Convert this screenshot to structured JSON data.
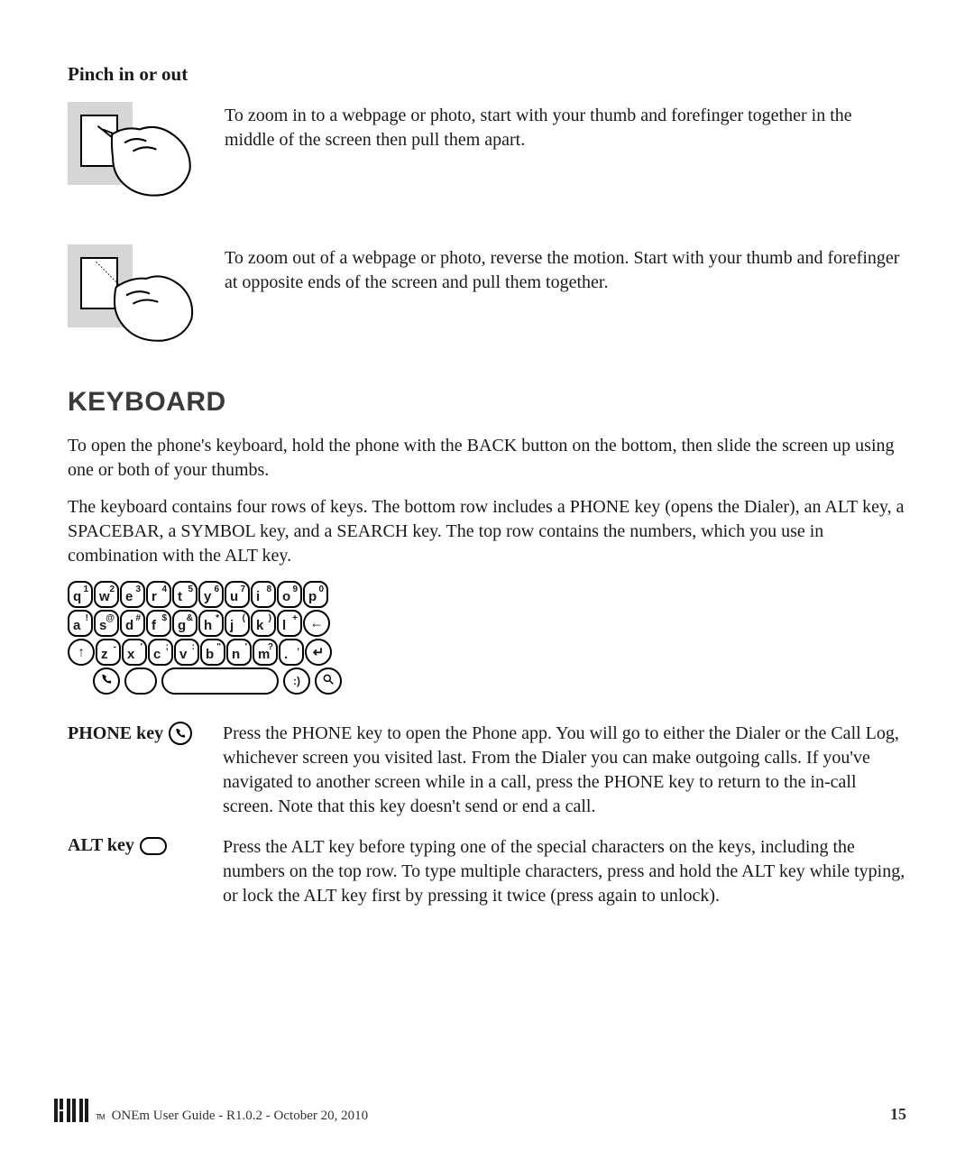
{
  "pinch": {
    "title": "Pinch in or out",
    "zoom_in_text": "To zoom in to a webpage or photo, start with your thumb and forefinger together in the middle of the screen then pull them apart.",
    "zoom_out_text": "To zoom out of a webpage or photo, reverse the motion. Start with your thumb and forefinger at opposite ends of the screen and pull them together."
  },
  "keyboard": {
    "heading": "KEYBOARD",
    "para1": "To open the phone's keyboard, hold the phone with the BACK button on the bottom, then slide the screen up using one or both of your thumbs.",
    "para2": "The keyboard contains four rows of keys. The bottom row includes a PHONE key (opens the Dialer), an ALT key, a SPACEBAR, a SYMBOL key, and a SEARCH key. The top row contains the numbers, which you use in combination with the ALT key.",
    "rows": [
      [
        {
          "main": "q",
          "sub": "1"
        },
        {
          "main": "w",
          "sub": "2"
        },
        {
          "main": "e",
          "sub": "3"
        },
        {
          "main": "r",
          "sub": "4"
        },
        {
          "main": "t",
          "sub": "5"
        },
        {
          "main": "y",
          "sub": "6"
        },
        {
          "main": "u",
          "sub": "7"
        },
        {
          "main": "i",
          "sub": "8"
        },
        {
          "main": "o",
          "sub": "9"
        },
        {
          "main": "p",
          "sub": "0"
        }
      ],
      [
        {
          "main": "a",
          "sub": "!"
        },
        {
          "main": "s",
          "sub": "@"
        },
        {
          "main": "d",
          "sub": "#"
        },
        {
          "main": "f",
          "sub": "$"
        },
        {
          "main": "g",
          "sub": "&"
        },
        {
          "main": "h",
          "sub": "*"
        },
        {
          "main": "j",
          "sub": "("
        },
        {
          "main": "k",
          "sub": ")"
        },
        {
          "main": "l",
          "sub": "+"
        },
        {
          "icon": "←"
        }
      ],
      [
        {
          "icon": "↑"
        },
        {
          "main": "z",
          "sub": "-"
        },
        {
          "main": "x",
          "sub": "'"
        },
        {
          "main": "c",
          "sub": ";"
        },
        {
          "main": "v",
          "sub": ":"
        },
        {
          "main": "b",
          "sub": "\""
        },
        {
          "main": "n",
          "sub": "'"
        },
        {
          "main": "m",
          "sub": "?"
        },
        {
          "main": ".",
          "sub": ","
        },
        {
          "icon": "↵"
        }
      ]
    ],
    "bottom_row": {
      "phone_icon": "phone",
      "alt_icon": "alt",
      "space": "space",
      "sym_icon": ":)",
      "search_icon": "search"
    }
  },
  "key_defs": {
    "phone": {
      "label": "PHONE key",
      "text": "Press the PHONE key to open the Phone app. You will go to either the Dialer or the Call Log, whichever screen you visited last. From the Dialer you can make outgoing calls. If you've navigated to another screen while in a call, press the PHONE key to return to the in-call screen. Note that this key doesn't send or end a call."
    },
    "alt": {
      "label": "ALT key",
      "text": "Press the ALT key before typing one of the special characters on the keys, including the numbers on the top row. To type multiple characters, press and hold the ALT key while typing, or lock the ALT key first by pressing it twice (press again to unlock)."
    }
  },
  "footer": {
    "logo": "KIN",
    "tm": "TM",
    "text": "ONEm User Guide - R1.0.2 - October 20, 2010",
    "page": "15"
  },
  "colors": {
    "text": "#1a1a1a",
    "heading": "#3a3a3a",
    "illus_bg": "#d6d6d6",
    "background": "#ffffff"
  }
}
